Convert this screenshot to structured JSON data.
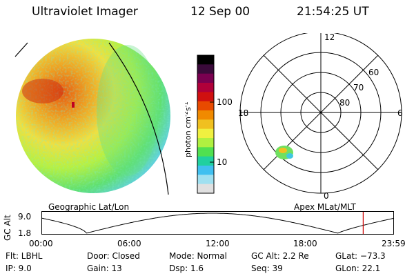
{
  "header": {
    "instrument": "Ultraviolet Imager",
    "date": "12 Sep 00",
    "time": "21:54:25 UT"
  },
  "colorbar": {
    "label": "photon cm",
    "label_exp": "-2",
    "label_unit": "s",
    "label_unit_exp": "-1",
    "tick_high": "100",
    "tick_low": "10",
    "colors": [
      "#000000",
      "#3a0a3a",
      "#7a0050",
      "#b0003a",
      "#d01010",
      "#e84a00",
      "#f08a00",
      "#f0c020",
      "#f0f040",
      "#b0f040",
      "#50e050",
      "#20d0a0",
      "#40c0f0",
      "#a0e0f0",
      "#e0e0e0"
    ]
  },
  "polar": {
    "label_top": "12",
    "label_left": "18",
    "label_right": "6",
    "label_bottom": "0",
    "lat_60": "60",
    "lat_70": "70",
    "lat_80": "80"
  },
  "labels": {
    "geographic": "Geographic Lat/Lon",
    "apex": "Apex MLat/MLT"
  },
  "altitude_plot": {
    "axis_title": "GC Alt",
    "y_high": "9.0",
    "y_low": "1.8",
    "x_ticks": [
      "00:00",
      "06:00",
      "12:00",
      "18:00",
      "23:59"
    ],
    "current_hour": 21.9
  },
  "info": {
    "filter": "Flt: LBHL",
    "ip": "IP:  9.0",
    "door": "Door: Closed",
    "gain": "Gain: 13",
    "mode": "Mode: Normal",
    "dsp": "Dsp:    1.6",
    "gc_alt": "GC Alt: 2.2 Re",
    "seq": "Seq: 39",
    "glat": "GLat: −73.3",
    "glon": "GLon:  22.1"
  },
  "colors": {
    "marker_line": "#cc0000"
  }
}
